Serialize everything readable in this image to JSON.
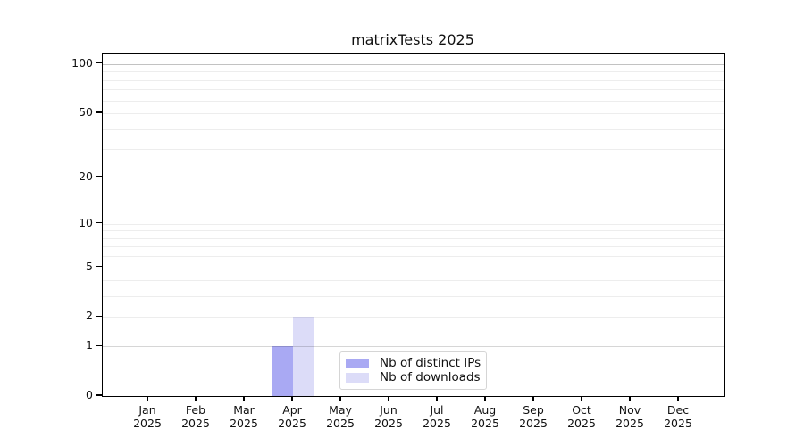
{
  "chart_data": {
    "type": "bar",
    "title": "matrixTests 2025",
    "year_label": "2025",
    "categories": [
      "Jan",
      "Feb",
      "Mar",
      "Apr",
      "May",
      "Jun",
      "Jul",
      "Aug",
      "Sep",
      "Oct",
      "Nov",
      "Dec"
    ],
    "series": [
      {
        "name": "Nb of distinct IPs",
        "color": "#a9a9f3",
        "values": [
          0,
          0,
          0,
          1,
          0,
          0,
          0,
          0,
          0,
          0,
          0,
          0
        ]
      },
      {
        "name": "Nb of downloads",
        "color": "#dcdcf8",
        "values": [
          0,
          0,
          0,
          2,
          0,
          0,
          0,
          0,
          0,
          0,
          0,
          0
        ]
      }
    ],
    "y_scale": "log1p",
    "ylim": [
      0,
      116
    ],
    "y_ticks": [
      0,
      1,
      2,
      5,
      10,
      20,
      50,
      100
    ],
    "y_gridlines": [
      1,
      2,
      3,
      4,
      5,
      6,
      7,
      8,
      9,
      10,
      20,
      30,
      40,
      50,
      60,
      70,
      80,
      90,
      100
    ],
    "grid": "horizontal",
    "legend_position": "inside-bottom-center",
    "colors": {
      "axis": "#000000",
      "grid_minor": "rgba(0,0,0,0.07)",
      "grid_unit": "rgba(0,0,0,0.16)",
      "grid_top": "rgba(0,0,0,0.24)",
      "legend_border": "#d5d5d5"
    }
  }
}
